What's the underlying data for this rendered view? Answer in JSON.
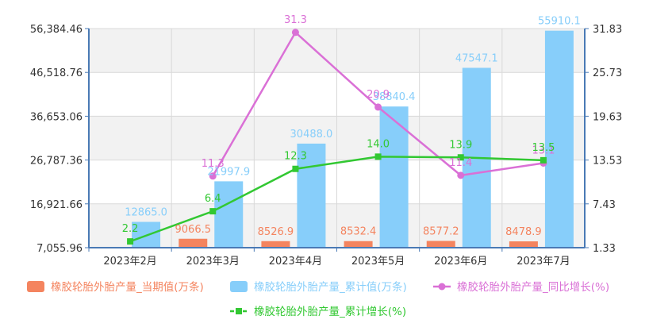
{
  "chart_data": {
    "type": "bar",
    "categories": [
      "2023年2月",
      "2023年3月",
      "2023年4月",
      "2023年5月",
      "2023年6月",
      "2023年7月"
    ],
    "left_axis": {
      "ticks": [
        "56,384.46",
        "46,518.76",
        "36,653.06",
        "26,787.36",
        "16,921.66",
        "7,055.96"
      ],
      "ylim": [
        7055.96,
        56384.46
      ]
    },
    "right_axis": {
      "ticks": [
        "31.83",
        "25.73",
        "19.63",
        "13.53",
        "7.43",
        "1.33"
      ],
      "ylim": [
        1.33,
        31.83
      ]
    },
    "grid": true,
    "legend_position": "bottom",
    "series": [
      {
        "name": "橡胶轮胎外胎产量_当期值(万条)",
        "kind": "bar",
        "axis": "left",
        "color": "#f4845f",
        "values": [
          null,
          9066.5,
          8526.9,
          8532.4,
          8577.2,
          8478.9
        ],
        "labels": [
          "",
          "9066.5",
          "8526.9",
          "8532.4",
          "8577.2",
          "8478.9"
        ]
      },
      {
        "name": "橡胶轮胎外胎产量_累计值(万条)",
        "kind": "bar",
        "axis": "left",
        "color": "#87cefa",
        "values": [
          12865.0,
          21997.9,
          30488.0,
          38840.4,
          47547.1,
          55910.1
        ],
        "labels": [
          "12865.0",
          "21997.9",
          "30488.0",
          "38840.4",
          "47547.1",
          "55910.1"
        ]
      },
      {
        "name": "橡胶轮胎外胎产量_同比增长(%)",
        "kind": "line",
        "axis": "right",
        "color": "#da70d6",
        "marker": "circle",
        "values": [
          null,
          11.3,
          31.3,
          20.9,
          11.4,
          13.1
        ],
        "labels": [
          "",
          "11.3",
          "31.3",
          "20.9",
          "11.4",
          "13.1"
        ]
      },
      {
        "name": "橡胶轮胎外胎产量_累计增长(%)",
        "kind": "line",
        "axis": "right",
        "color": "#32c832",
        "marker": "square",
        "values": [
          2.2,
          6.4,
          12.3,
          14.0,
          13.9,
          13.5
        ],
        "labels": [
          "2.2",
          "6.4",
          "12.3",
          "14.0",
          "13.9",
          "13.5"
        ]
      }
    ]
  }
}
